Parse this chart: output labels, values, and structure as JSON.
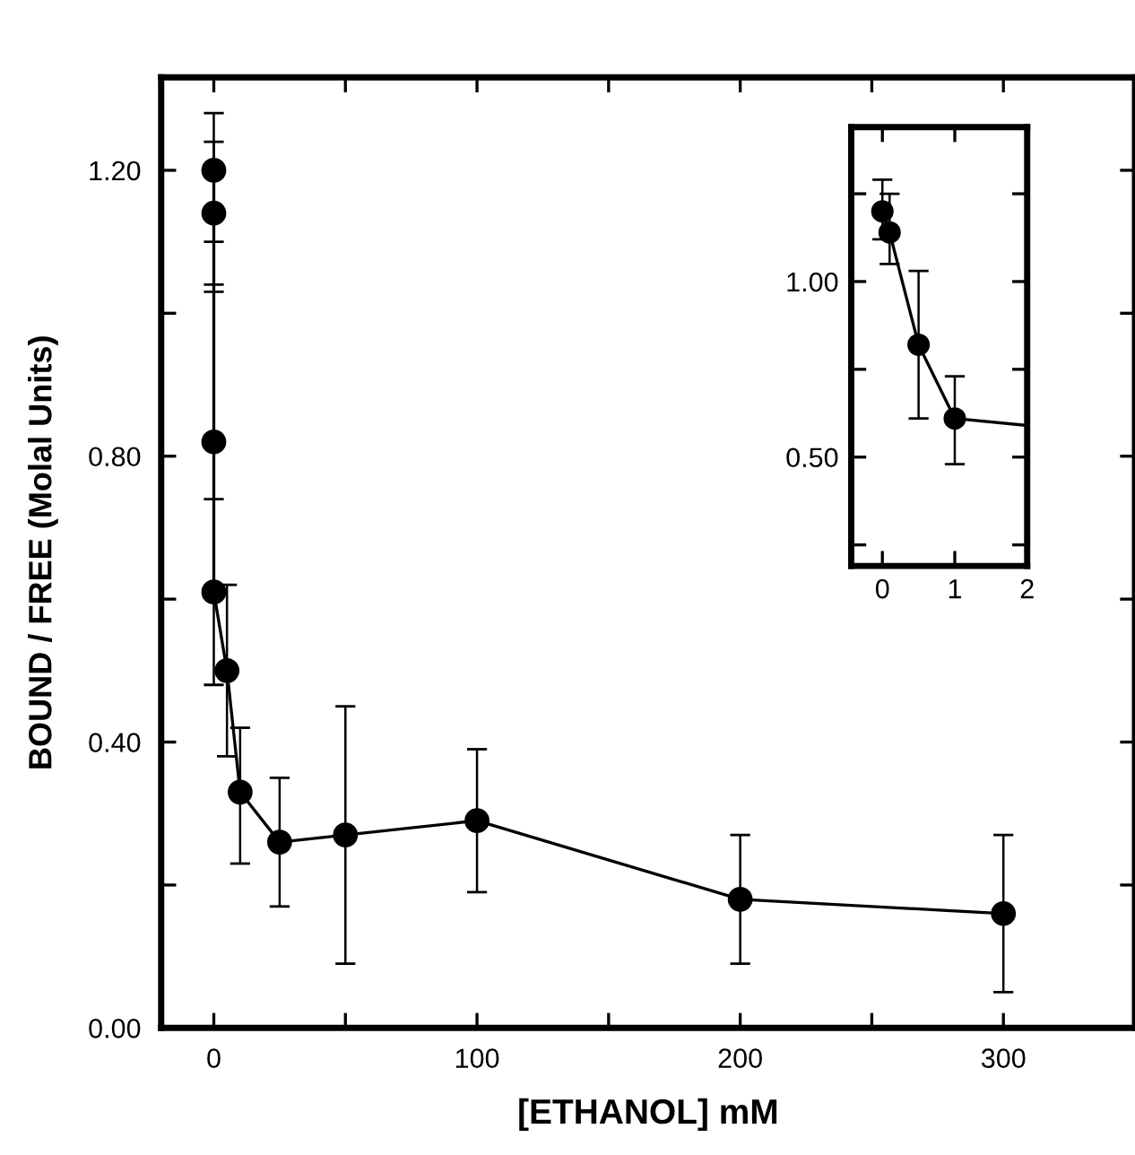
{
  "chart_data": [
    {
      "type": "line",
      "xlabel": "[ETHANOL] mM",
      "ylabel": "BOUND / FREE (Molal Units)",
      "xlim": [
        -20,
        350
      ],
      "ylim": [
        0,
        1.33
      ],
      "xticks": [
        0,
        {
          "value": 50,
          "label": null
        },
        100,
        {
          "value": 150,
          "label": null
        },
        200,
        {
          "value": 250,
          "label": null
        },
        300
      ],
      "yticks": [
        {
          "value": 0,
          "label": "0.00"
        },
        {
          "value": 0.2,
          "label": null
        },
        {
          "value": 0.4,
          "label": "0.40"
        },
        {
          "value": 0.6,
          "label": null
        },
        {
          "value": 0.8,
          "label": "0.80"
        },
        {
          "value": 1.0,
          "label": null
        },
        {
          "value": 1.2,
          "label": "1.20"
        }
      ],
      "marker": "circle",
      "line_style": "solid",
      "grid": false,
      "legend": false,
      "series": [
        {
          "color": "#000000",
          "x": [
            0,
            0,
            0,
            0,
            5,
            10,
            25,
            50,
            100,
            200,
            300
          ],
          "values": [
            1.2,
            1.14,
            0.82,
            0.61,
            0.5,
            0.33,
            0.26,
            0.27,
            0.29,
            0.18,
            0.16
          ],
          "errors": [
            [
              1.1,
              1.28
            ],
            [
              1.04,
              1.24
            ],
            [
              0.82,
              1.03
            ],
            [
              0.48,
              0.74
            ],
            [
              0.38,
              0.62
            ],
            [
              0.23,
              0.42
            ],
            [
              0.17,
              0.35
            ],
            [
              0.09,
              0.45
            ],
            [
              0.19,
              0.39
            ],
            [
              0.09,
              0.27
            ],
            [
              0.05,
              0.27
            ]
          ]
        }
      ]
    },
    {
      "type": "line",
      "xlim": [
        -0.43,
        2
      ],
      "ylim": [
        0.19,
        1.44
      ],
      "xticks": [
        0,
        1,
        2
      ],
      "yticks": [
        {
          "value": 0.25,
          "label": null
        },
        {
          "value": 0.5,
          "label": "0.50"
        },
        {
          "value": 0.75,
          "label": null
        },
        {
          "value": 1.0,
          "label": "1.00"
        },
        {
          "value": 1.25,
          "label": null
        }
      ],
      "marker": "circle",
      "line_style": "solid",
      "grid": false,
      "legend": false,
      "series": [
        {
          "color": "#000000",
          "x": [
            0,
            0.1,
            0.5,
            1,
            2
          ],
          "values": [
            1.2,
            1.14,
            0.82,
            0.61,
            0.59
          ],
          "errors": [
            [
              1.12,
              1.29
            ],
            [
              1.05,
              1.25
            ],
            [
              0.61,
              1.03
            ],
            [
              0.48,
              0.73
            ],
            null
          ]
        }
      ]
    }
  ]
}
